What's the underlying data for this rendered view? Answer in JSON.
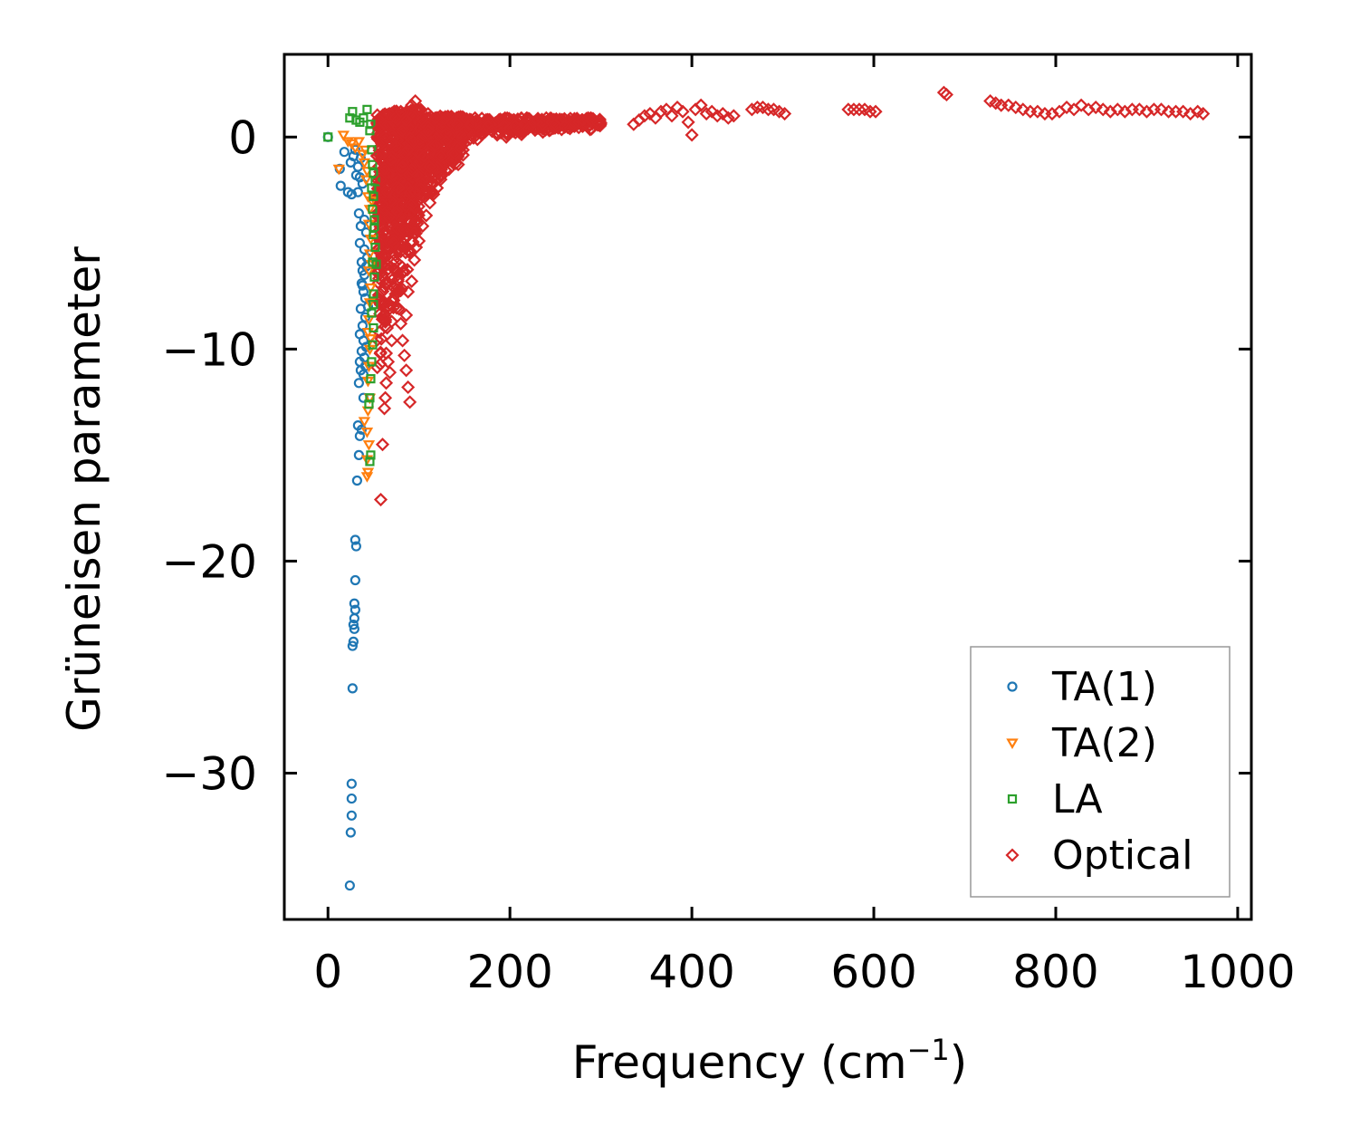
{
  "chart_data": {
    "type": "scatter",
    "title": "",
    "xlabel": "Frequency (cm",
    "xlabel_sup": "−1",
    "xlabel_end": ")",
    "ylabel": "Grüneisen parameter",
    "xlim": [
      -48,
      1015
    ],
    "ylim": [
      -36.9,
      3.9
    ],
    "xticks": [
      0,
      200,
      400,
      600,
      800,
      1000
    ],
    "xtick_labels": [
      "0",
      "200",
      "400",
      "600",
      "800",
      "1000"
    ],
    "yticks": [
      0,
      -10,
      -20,
      -30
    ],
    "ytick_labels": [
      "0",
      "−10",
      "−20",
      "−30"
    ],
    "grid": false,
    "legend": {
      "position": "lower-right",
      "entries": [
        "TA(1)",
        "TA(2)",
        "LA",
        "Optical"
      ]
    },
    "series": [
      {
        "name": "TA(1)",
        "marker": "circle",
        "color": "#1f77b4",
        "points": [
          [
            0,
            0
          ],
          [
            13,
            -1.5
          ],
          [
            14,
            -2.3
          ],
          [
            18,
            -0.7
          ],
          [
            22,
            -2.6
          ],
          [
            26,
            -2.7
          ],
          [
            30,
            -0.6
          ],
          [
            33,
            -2.6
          ],
          [
            25,
            -1.2
          ],
          [
            28,
            -0.9
          ],
          [
            31,
            -1.8
          ],
          [
            33,
            -1.4
          ],
          [
            35,
            -1.9
          ],
          [
            34,
            -3.6
          ],
          [
            36,
            -4.2
          ],
          [
            35,
            -5.0
          ],
          [
            37,
            -5.9
          ],
          [
            38,
            -6.3
          ],
          [
            37,
            -6.9
          ],
          [
            39,
            -7.3
          ],
          [
            36,
            -8.1
          ],
          [
            38,
            -8.9
          ],
          [
            35,
            -9.3
          ],
          [
            37,
            -10.1
          ],
          [
            35,
            -10.6
          ],
          [
            36,
            -11.0
          ],
          [
            34,
            -11.6
          ],
          [
            33,
            -13.6
          ],
          [
            35,
            -14.1
          ],
          [
            34,
            -15.0
          ],
          [
            32,
            -16.2
          ],
          [
            30,
            -19.0
          ],
          [
            31,
            -19.3
          ],
          [
            30,
            -20.9
          ],
          [
            29,
            -22.0
          ],
          [
            30,
            -22.3
          ],
          [
            29,
            -22.7
          ],
          [
            28,
            -23.0
          ],
          [
            29,
            -23.2
          ],
          [
            28,
            -23.8
          ],
          [
            27,
            -24.0
          ],
          [
            27,
            -26.0
          ],
          [
            26,
            -30.5
          ],
          [
            26,
            -31.2
          ],
          [
            26,
            -32.0
          ],
          [
            25,
            -32.8
          ],
          [
            24,
            -35.3
          ],
          [
            40,
            -6.5
          ],
          [
            41,
            -7.6
          ],
          [
            42,
            -9.9
          ],
          [
            40,
            -10.4
          ],
          [
            39,
            -11.2
          ],
          [
            41,
            -8.5
          ],
          [
            43,
            -5.7
          ],
          [
            40,
            -3.9
          ],
          [
            38,
            -2.2
          ],
          [
            36,
            -1.0
          ],
          [
            42,
            -4.5
          ],
          [
            39,
            -12.3
          ],
          [
            37,
            -13.8
          ],
          [
            41,
            -10.8
          ],
          [
            39,
            -9.6
          ],
          [
            38,
            -7.0
          ],
          [
            40,
            -5.3
          ],
          [
            42,
            -6.1
          ],
          [
            44,
            -8.0
          ]
        ]
      },
      {
        "name": "TA(2)",
        "marker": "triangle-down",
        "color": "#ff7f0e",
        "points": [
          [
            12,
            -1.5
          ],
          [
            17,
            0.1
          ],
          [
            22,
            -0.2
          ],
          [
            26,
            -0.3
          ],
          [
            30,
            -0.5
          ],
          [
            34,
            -0.2
          ],
          [
            38,
            -0.8
          ],
          [
            40,
            -1.2
          ],
          [
            42,
            -2.0
          ],
          [
            44,
            -2.8
          ],
          [
            46,
            -3.4
          ],
          [
            45,
            -4.1
          ],
          [
            47,
            -4.8
          ],
          [
            46,
            -5.5
          ],
          [
            45,
            -6.3
          ],
          [
            47,
            -7.1
          ],
          [
            46,
            -7.8
          ],
          [
            45,
            -8.6
          ],
          [
            44,
            -9.2
          ],
          [
            46,
            -10.0
          ],
          [
            45,
            -10.8
          ],
          [
            44,
            -11.5
          ],
          [
            46,
            -12.3
          ],
          [
            44,
            -12.9
          ],
          [
            40,
            -13.4
          ],
          [
            43,
            -13.9
          ],
          [
            45,
            -14.5
          ],
          [
            43,
            -15.2
          ],
          [
            44,
            -15.8
          ],
          [
            43,
            -16.0
          ],
          [
            48,
            -3.0
          ],
          [
            47,
            -9.5
          ],
          [
            48,
            -6.0
          ],
          [
            43,
            -1.6
          ],
          [
            41,
            -0.6
          ]
        ]
      },
      {
        "name": "LA",
        "marker": "square",
        "color": "#2ca02c",
        "points": [
          [
            0,
            0
          ],
          [
            24,
            0.9
          ],
          [
            27,
            1.2
          ],
          [
            31,
            0.8
          ],
          [
            35,
            0.7
          ],
          [
            39,
            0.9
          ],
          [
            43,
            1.3
          ],
          [
            47,
            0.6
          ],
          [
            46,
            0.3
          ],
          [
            48,
            -0.6
          ],
          [
            49,
            -1.3
          ],
          [
            50,
            -1.7
          ],
          [
            48,
            -2.4
          ],
          [
            50,
            -2.8
          ],
          [
            49,
            -3.4
          ],
          [
            51,
            -3.9
          ],
          [
            50,
            -4.6
          ],
          [
            52,
            -5.2
          ],
          [
            49,
            -5.9
          ],
          [
            51,
            -6.6
          ],
          [
            50,
            -7.4
          ],
          [
            48,
            -8.3
          ],
          [
            50,
            -9.0
          ],
          [
            49,
            -9.8
          ],
          [
            48,
            -10.6
          ],
          [
            47,
            -11.4
          ],
          [
            46,
            -12.3
          ],
          [
            45,
            -12.6
          ],
          [
            47,
            -15.0
          ],
          [
            46,
            -15.3
          ],
          [
            52,
            -2.1
          ],
          [
            51,
            -4.3
          ],
          [
            53,
            -6.0
          ],
          [
            50,
            -7.9
          ]
        ]
      },
      {
        "name": "Optical",
        "marker": "diamond",
        "color": "#d62728",
        "points": [
          [
            59,
            -0.3
          ],
          [
            62,
            -1.5
          ],
          [
            65,
            -2.6
          ],
          [
            67,
            -3.8
          ],
          [
            70,
            -4.9
          ],
          [
            72,
            -6.0
          ],
          [
            75,
            -7.2
          ],
          [
            78,
            -8.1
          ],
          [
            80,
            -8.8
          ],
          [
            82,
            -9.6
          ],
          [
            84,
            -10.3
          ],
          [
            86,
            -11.0
          ],
          [
            88,
            -11.8
          ],
          [
            90,
            -12.5
          ],
          [
            58,
            -17.1
          ],
          [
            60,
            -14.5
          ],
          [
            62,
            -12.8
          ],
          [
            63,
            -12.3
          ],
          [
            64,
            -11.6
          ],
          [
            66,
            -10.6
          ],
          [
            64,
            -10.2
          ],
          [
            65,
            -9.0
          ],
          [
            70,
            -8.7
          ],
          [
            86,
            -8.4
          ],
          [
            88,
            -7.3
          ],
          [
            92,
            -6.8
          ],
          [
            95,
            -5.8
          ],
          [
            97,
            -5.2
          ],
          [
            100,
            -4.9
          ],
          [
            104,
            -4.2
          ],
          [
            108,
            -3.7
          ],
          [
            112,
            -3.1
          ],
          [
            116,
            -2.7
          ],
          [
            120,
            -2.4
          ],
          [
            124,
            -2.0
          ],
          [
            130,
            -1.6
          ],
          [
            136,
            -1.1
          ],
          [
            140,
            -0.8
          ],
          [
            146,
            -0.5
          ],
          [
            150,
            -0.3
          ],
          [
            156,
            -0.1
          ],
          [
            160,
            0.1
          ],
          [
            166,
            0.3
          ],
          [
            170,
            0.2
          ],
          [
            176,
            0.5
          ],
          [
            180,
            0.3
          ],
          [
            186,
            0.1
          ],
          [
            190,
            0.2
          ],
          [
            196,
            0.0
          ],
          [
            200,
            0.4
          ],
          [
            206,
            0.5
          ],
          [
            210,
            0.3
          ],
          [
            216,
            0.6
          ],
          [
            220,
            0.4
          ],
          [
            226,
            0.7
          ],
          [
            230,
            0.8
          ],
          [
            236,
            0.6
          ],
          [
            240,
            0.9
          ],
          [
            246,
            0.7
          ],
          [
            250,
            0.6
          ],
          [
            256,
            0.8
          ],
          [
            260,
            0.5
          ],
          [
            266,
            0.4
          ],
          [
            270,
            0.6
          ],
          [
            276,
            0.7
          ],
          [
            280,
            0.8
          ],
          [
            286,
            0.9
          ],
          [
            290,
            0.8
          ],
          [
            296,
            0.7
          ],
          [
            336,
            0.6
          ],
          [
            342,
            0.8
          ],
          [
            348,
            1.0
          ],
          [
            354,
            1.1
          ],
          [
            360,
            0.9
          ],
          [
            366,
            1.2
          ],
          [
            372,
            1.3
          ],
          [
            378,
            1.0
          ],
          [
            384,
            1.4
          ],
          [
            390,
            1.2
          ],
          [
            396,
            0.7
          ],
          [
            400,
            0.1
          ],
          [
            404,
            1.3
          ],
          [
            410,
            1.5
          ],
          [
            416,
            1.1
          ],
          [
            422,
            1.2
          ],
          [
            428,
            1.0
          ],
          [
            434,
            1.1
          ],
          [
            440,
            0.9
          ],
          [
            446,
            1.0
          ],
          [
            466,
            1.3
          ],
          [
            472,
            1.4
          ],
          [
            478,
            1.4
          ],
          [
            484,
            1.3
          ],
          [
            490,
            1.3
          ],
          [
            496,
            1.2
          ],
          [
            502,
            1.1
          ],
          [
            572,
            1.3
          ],
          [
            578,
            1.3
          ],
          [
            584,
            1.3
          ],
          [
            590,
            1.3
          ],
          [
            596,
            1.2
          ],
          [
            602,
            1.2
          ],
          [
            677,
            2.1
          ],
          [
            680,
            2.0
          ],
          [
            728,
            1.7
          ],
          [
            734,
            1.6
          ],
          [
            740,
            1.5
          ],
          [
            748,
            1.5
          ],
          [
            756,
            1.4
          ],
          [
            764,
            1.3
          ],
          [
            772,
            1.2
          ],
          [
            780,
            1.2
          ],
          [
            788,
            1.1
          ],
          [
            796,
            1.1
          ],
          [
            804,
            1.2
          ],
          [
            812,
            1.4
          ],
          [
            820,
            1.3
          ],
          [
            828,
            1.5
          ],
          [
            836,
            1.3
          ],
          [
            844,
            1.4
          ],
          [
            852,
            1.3
          ],
          [
            860,
            1.2
          ],
          [
            868,
            1.3
          ],
          [
            876,
            1.2
          ],
          [
            884,
            1.3
          ],
          [
            892,
            1.3
          ],
          [
            900,
            1.2
          ],
          [
            908,
            1.3
          ],
          [
            916,
            1.3
          ],
          [
            924,
            1.2
          ],
          [
            932,
            1.2
          ],
          [
            940,
            1.2
          ],
          [
            948,
            1.1
          ],
          [
            956,
            1.2
          ],
          [
            962,
            1.1
          ],
          [
            68,
            1.1
          ],
          [
            74,
            0.9
          ],
          [
            80,
            1.2
          ],
          [
            86,
            0.8
          ],
          [
            92,
            1.5
          ],
          [
            96,
            1.7
          ],
          [
            102,
            1.3
          ],
          [
            110,
            1.1
          ],
          [
            118,
            0.9
          ],
          [
            126,
            0.7
          ],
          [
            134,
            0.6
          ],
          [
            142,
            0.6
          ],
          [
            56,
            0.4
          ],
          [
            54,
            -0.9
          ],
          [
            58,
            -2.0
          ],
          [
            60,
            -3.2
          ],
          [
            61,
            -4.5
          ],
          [
            63,
            -5.6
          ],
          [
            66,
            -6.9
          ],
          [
            68,
            -7.9
          ],
          [
            72,
            -5.0
          ],
          [
            76,
            -3.5
          ],
          [
            78,
            -2.4
          ],
          [
            82,
            -1.4
          ],
          [
            88,
            -0.6
          ],
          [
            94,
            -0.2
          ],
          [
            98,
            -1.8
          ],
          [
            104,
            -2.8
          ],
          [
            112,
            -1.4
          ],
          [
            118,
            -0.4
          ],
          [
            124,
            -0.9
          ],
          [
            130,
            -0.2
          ],
          [
            84,
            -4.4
          ],
          [
            90,
            -3.6
          ],
          [
            96,
            -2.6
          ],
          [
            74,
            -6.3
          ],
          [
            80,
            -5.4
          ],
          [
            70,
            -9.6
          ],
          [
            68,
            -11.1
          ],
          [
            62,
            -8.4
          ]
        ]
      }
    ],
    "dense_regions": [
      {
        "series": "Optical",
        "x": [
          54,
          100
        ],
        "y": [
          -11.5,
          1.3
        ]
      },
      {
        "series": "Optical",
        "x": [
          100,
          150
        ],
        "y": [
          -3.5,
          1.0
        ]
      },
      {
        "series": "Optical",
        "x": [
          150,
          300
        ],
        "y": [
          -0.2,
          0.9
        ]
      }
    ]
  }
}
